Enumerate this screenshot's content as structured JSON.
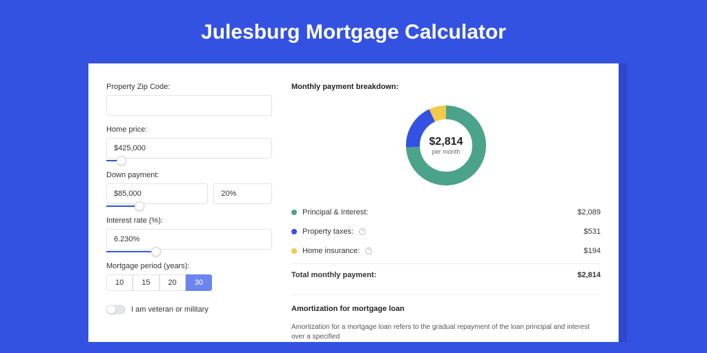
{
  "page": {
    "title": "Julesburg Mortgage Calculator",
    "background_color": "#3452e1",
    "card_shadow_color": "#2d48c8",
    "card_background": "#ffffff"
  },
  "form": {
    "zip": {
      "label": "Property Zip Code:",
      "value": ""
    },
    "home_price": {
      "label": "Home price:",
      "value": "$425,000",
      "slider": {
        "fill_pct": 9,
        "thumb_pct": 9
      }
    },
    "down_payment": {
      "label": "Down payment:",
      "amount": "$85,000",
      "pct": "20%",
      "slider": {
        "fill_pct": 20,
        "thumb_pct": 20
      }
    },
    "interest_rate": {
      "label": "Interest rate (%):",
      "value": "6.230%",
      "slider": {
        "fill_pct": 30,
        "thumb_pct": 30
      }
    },
    "period": {
      "label": "Mortgage period (years):",
      "options": [
        "10",
        "15",
        "20",
        "30"
      ],
      "active_index": 3
    },
    "veteran": {
      "label": "I am veteran or military",
      "on": false
    }
  },
  "breakdown": {
    "title": "Monthly payment breakdown:",
    "donut": {
      "center_amount": "$2,814",
      "center_label": "per month",
      "slices": [
        {
          "color": "#4aa38a",
          "value": 2089
        },
        {
          "color": "#3452e1",
          "value": 531
        },
        {
          "color": "#f2c94c",
          "value": 194
        }
      ],
      "stroke_width": 20
    },
    "rows": [
      {
        "color": "#4aa38a",
        "label": "Principal & Interest:",
        "info": false,
        "amount": "$2,089"
      },
      {
        "color": "#3452e1",
        "label": "Property taxes:",
        "info": true,
        "amount": "$531"
      },
      {
        "color": "#f2c94c",
        "label": "Home insurance:",
        "info": true,
        "amount": "$194"
      }
    ],
    "total": {
      "label": "Total monthly payment:",
      "amount": "$2,814"
    }
  },
  "amortization": {
    "title": "Amortization for mortgage loan",
    "text": "Amortization for a mortgage loan refers to the gradual repayment of the loan principal and interest over a specified"
  }
}
